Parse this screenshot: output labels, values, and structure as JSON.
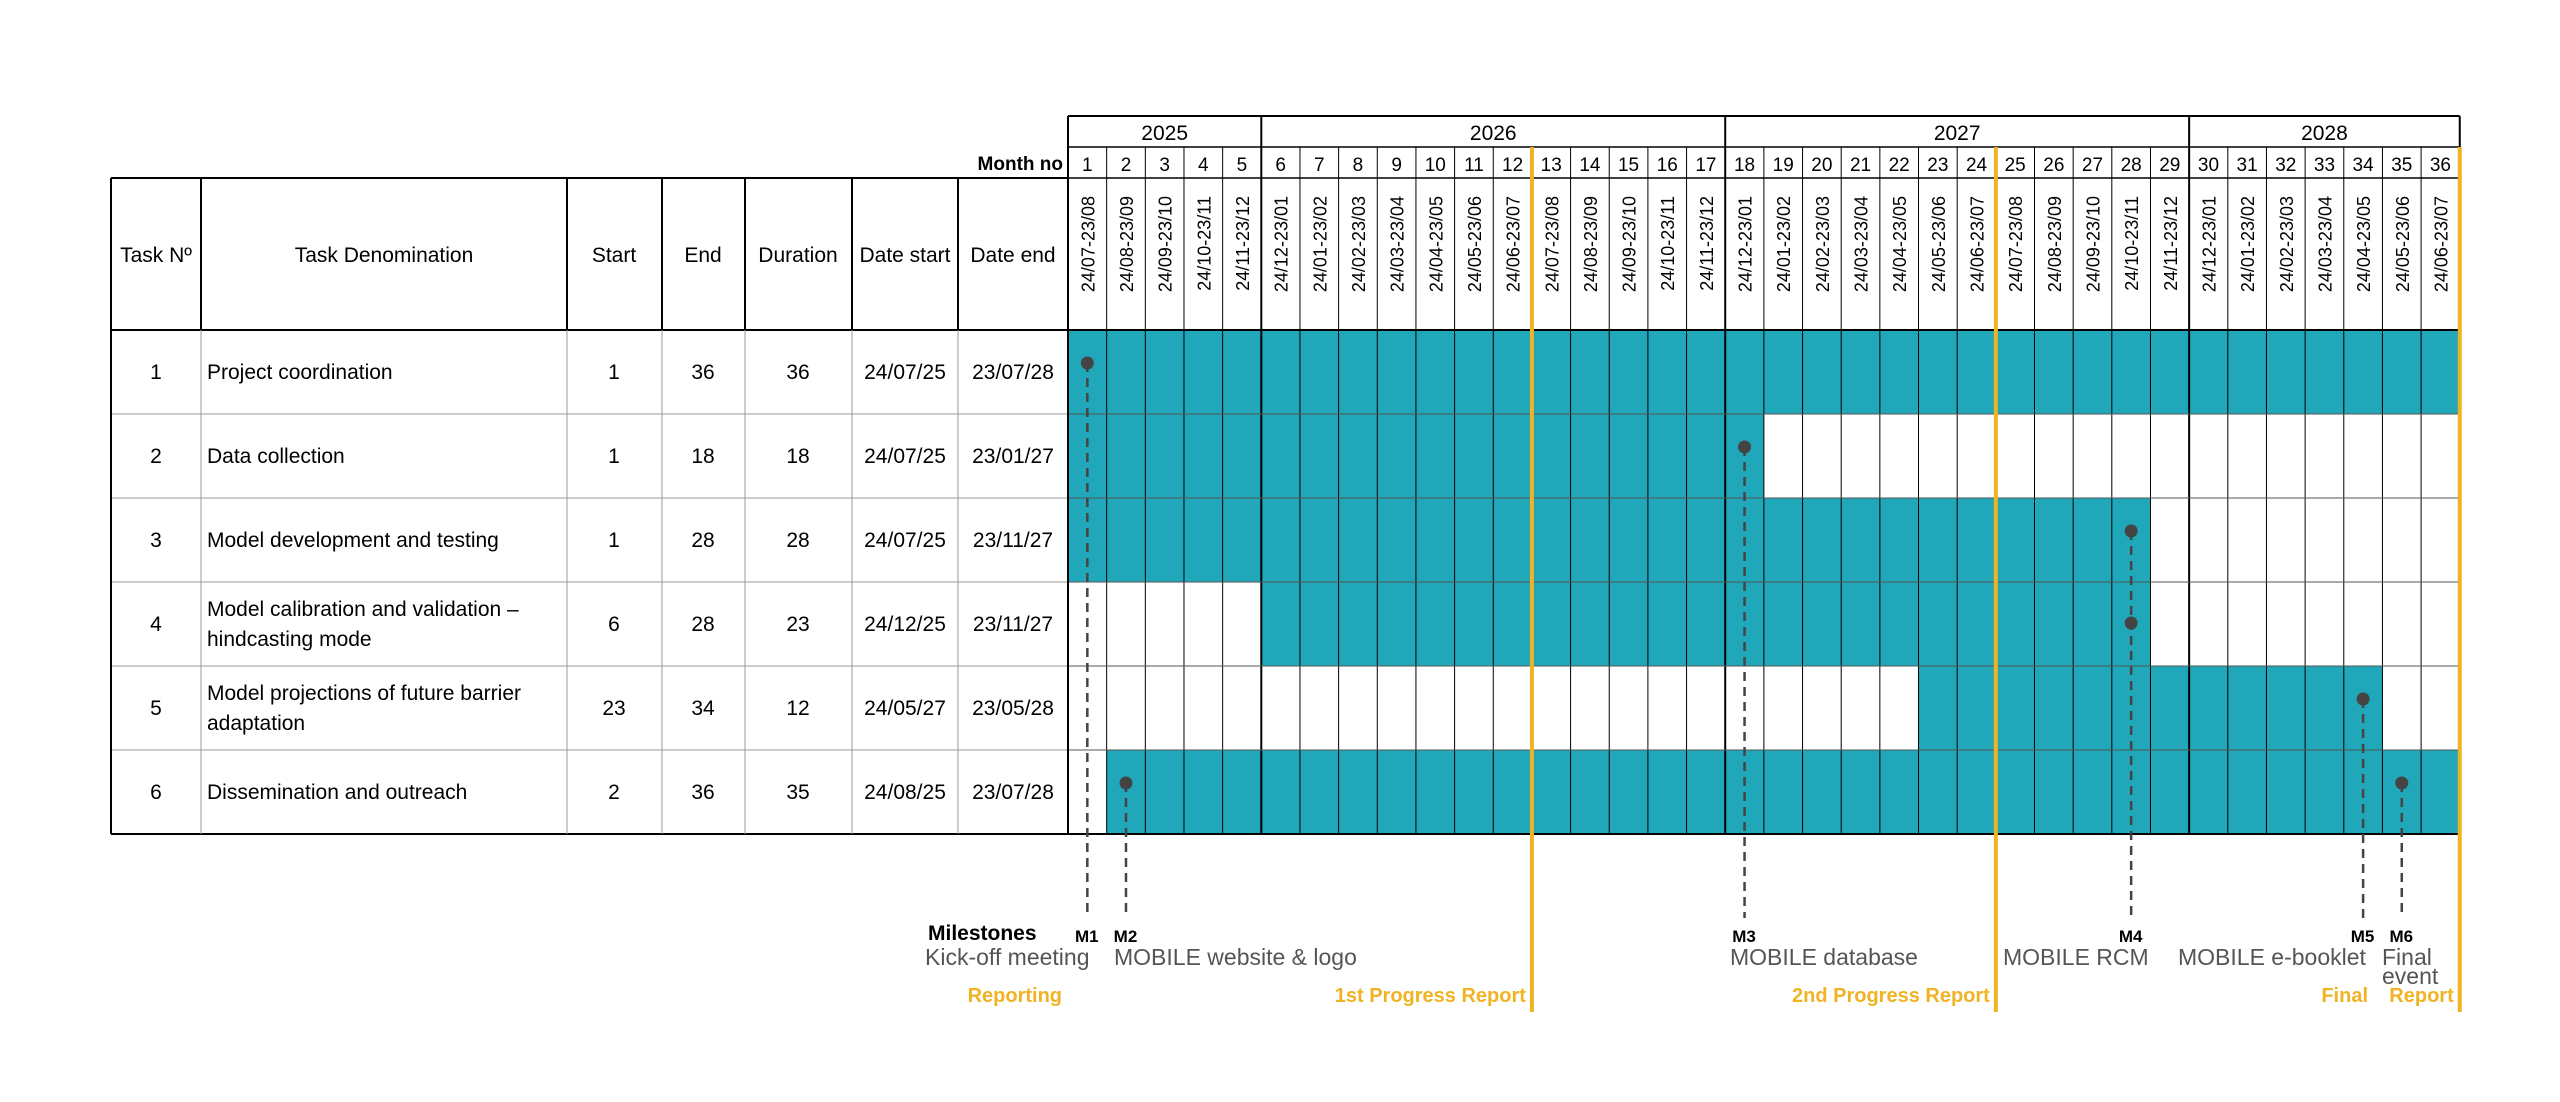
{
  "table": {
    "headers": {
      "task_no": "Task Nº",
      "task_name": "Task Denomination",
      "start": "Start",
      "end": "End",
      "duration": "Duration",
      "date_start": "Date start",
      "date_end": "Date end"
    },
    "month_no_label": "Month no",
    "tasks": [
      {
        "no": "1",
        "name": [
          "Project coordination"
        ],
        "start": "1",
        "end": "36",
        "duration": "36",
        "date_start": "24/07/25",
        "date_end": "23/07/28"
      },
      {
        "no": "2",
        "name": [
          "Data collection"
        ],
        "start": "1",
        "end": "18",
        "duration": "18",
        "date_start": "24/07/25",
        "date_end": "23/01/27"
      },
      {
        "no": "3",
        "name": [
          "Model development and testing"
        ],
        "start": "1",
        "end": "28",
        "duration": "28",
        "date_start": "24/07/25",
        "date_end": "23/11/27"
      },
      {
        "no": "4",
        "name": [
          "Model calibration and validation –",
          "hindcasting mode"
        ],
        "start": "6",
        "end": "28",
        "duration": "23",
        "date_start": "24/12/25",
        "date_end": "23/11/27"
      },
      {
        "no": "5",
        "name": [
          "Model projections of future barrier",
          "adaptation"
        ],
        "start": "23",
        "end": "34",
        "duration": "12",
        "date_start": "24/05/27",
        "date_end": "23/05/28"
      },
      {
        "no": "6",
        "name": [
          "Dissemination and outreach"
        ],
        "start": "2",
        "end": "36",
        "duration": "35",
        "date_start": "24/08/25",
        "date_end": "23/07/28"
      }
    ]
  },
  "chart_data": {
    "type": "gantt",
    "years": [
      {
        "label": "2025",
        "from": 1,
        "to": 5
      },
      {
        "label": "2026",
        "from": 6,
        "to": 17
      },
      {
        "label": "2027",
        "from": 18,
        "to": 29
      },
      {
        "label": "2028",
        "from": 30,
        "to": 36
      }
    ],
    "months": [
      "1",
      "2",
      "3",
      "4",
      "5",
      "6",
      "7",
      "8",
      "9",
      "10",
      "11",
      "12",
      "13",
      "14",
      "15",
      "16",
      "17",
      "18",
      "19",
      "20",
      "21",
      "22",
      "23",
      "24",
      "25",
      "26",
      "27",
      "28",
      "29",
      "30",
      "31",
      "32",
      "33",
      "34",
      "35",
      "36"
    ],
    "month_dates": [
      "24/07-23/08",
      "24/08-23/09",
      "24/09-23/10",
      "24/10-23/11",
      "24/11-23/12",
      "24/12-23/01",
      "24/01-23/02",
      "24/02-23/03",
      "24/03-23/04",
      "24/04-23/05",
      "24/05-23/06",
      "24/06-23/07",
      "24/07-23/08",
      "24/08-23/09",
      "24/09-23/10",
      "24/10-23/11",
      "24/11-23/12",
      "24/12-23/01",
      "24/01-23/02",
      "24/02-23/03",
      "24/03-23/04",
      "24/04-23/05",
      "24/05-23/06",
      "24/06-23/07",
      "24/07-23/08",
      "24/08-23/09",
      "24/09-23/10",
      "24/10-23/11",
      "24/11-23/12",
      "24/12-23/01",
      "24/01-23/02",
      "24/02-23/03",
      "24/03-23/04",
      "24/04-23/05",
      "24/05-23/06",
      "24/06-23/07"
    ],
    "bars": [
      {
        "task": 1,
        "start": 1,
        "end": 36
      },
      {
        "task": 2,
        "start": 1,
        "end": 18
      },
      {
        "task": 3,
        "start": 1,
        "end": 28
      },
      {
        "task": 4,
        "start": 6,
        "end": 28
      },
      {
        "task": 5,
        "start": 23,
        "end": 34
      },
      {
        "task": 6,
        "start": 2,
        "end": 36
      }
    ],
    "milestones_label": "Milestones",
    "milestones": [
      {
        "id": "M1",
        "month": 1,
        "task": 1,
        "label": [
          "Kick-off meeting"
        ]
      },
      {
        "id": "M2",
        "month": 2,
        "task": 6,
        "label": [
          "MOBILE website & logo"
        ]
      },
      {
        "id": "M3",
        "month": 18,
        "task": 2,
        "label": [
          "MOBILE database"
        ]
      },
      {
        "id": "M4",
        "month": 28,
        "task": 3,
        "extra_tasks": [
          4
        ],
        "label": [
          "MOBILE RCM"
        ]
      },
      {
        "id": "M5",
        "month": 34,
        "task": 5,
        "label": [
          "MOBILE e-booklet"
        ]
      },
      {
        "id": "M6",
        "month": 35,
        "task": 6,
        "label": [
          "Final",
          "event"
        ]
      }
    ],
    "reporting_label": "Reporting",
    "reports": [
      {
        "label": "1st Progress Report",
        "after_month": 12
      },
      {
        "label": "2nd Progress Report",
        "after_month": 24
      },
      {
        "label": "Final Report",
        "after_month": 36
      }
    ],
    "colors": {
      "bar": "#20a7b9",
      "report": "#f0b323",
      "milestone": "#444444",
      "milestone_label": "#555555"
    }
  }
}
